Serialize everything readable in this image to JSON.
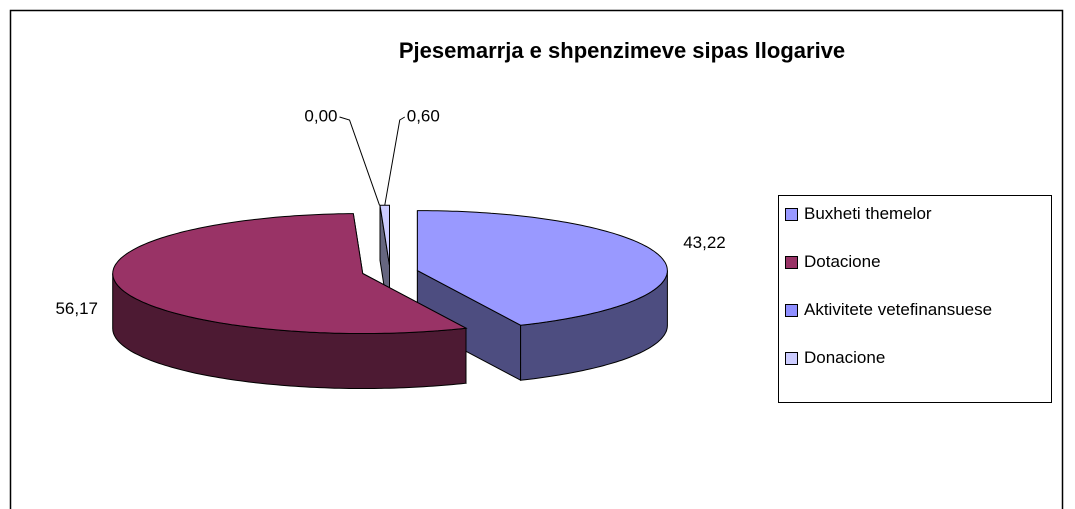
{
  "chart_data": {
    "type": "pie",
    "title": "Pjesemarrja e shpenzimeve sipas llogarive",
    "categories": [
      "Buxheti themelor",
      "Dotacione",
      "Aktivitete vetefinansuese",
      "Donacione"
    ],
    "values": [
      43.22,
      56.17,
      0.0,
      0.6
    ],
    "value_labels": [
      "43,22",
      "56,17",
      "0,00",
      "0,60"
    ],
    "colors": [
      "#9999ff",
      "#993366",
      "#8f8fff",
      "#ccccff"
    ],
    "legend": "right"
  }
}
